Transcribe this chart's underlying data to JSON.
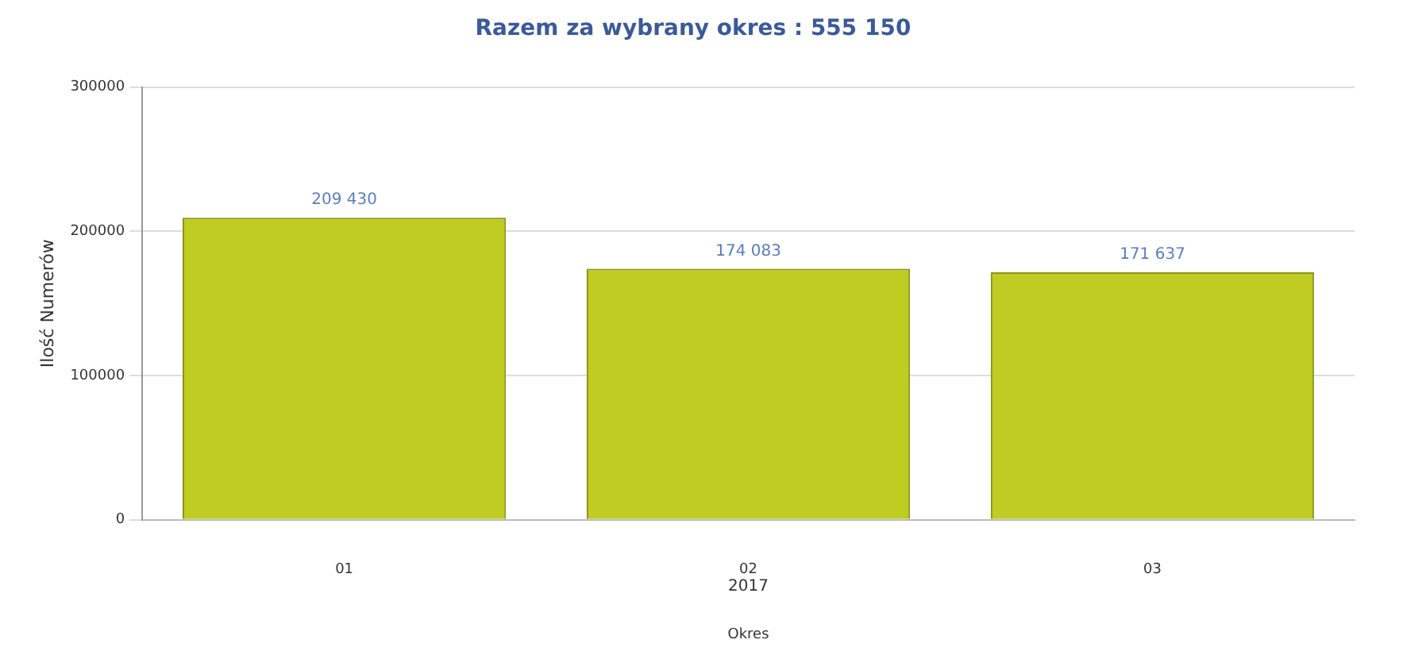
{
  "chart_data": {
    "type": "bar",
    "title": "Razem za wybrany okres : 555 150",
    "xlabel": "Okres",
    "ylabel": "Ilość Numerów",
    "categories": [
      "01",
      "02",
      "03"
    ],
    "values": [
      209430,
      174083,
      171637
    ],
    "value_labels": [
      "209 430",
      "174 083",
      "171 637"
    ],
    "color": "#bfcc22",
    "annotations": [
      "2017"
    ],
    "ylim": [
      0,
      300000
    ],
    "yticks": [
      0,
      100000,
      200000,
      300000
    ],
    "grid": "y",
    "legend": false
  }
}
